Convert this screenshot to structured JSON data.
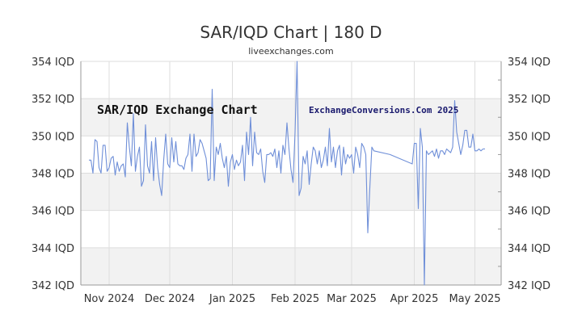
{
  "title": "SAR/IQD Chart | 180 D",
  "subtitle": "liveexchanges.com",
  "watermarks": {
    "left": "SAR/IQD Exchange Chart",
    "right": "ExchangeConversions.Com 2025"
  },
  "colors": {
    "line": "#6f8fd8",
    "band": "#f2f2f2",
    "grid": "#dddddd",
    "axis": "#999999"
  },
  "chart_data": {
    "type": "line",
    "ylim": [
      342,
      354
    ],
    "yticks": [
      342,
      344,
      346,
      348,
      350,
      352,
      354
    ],
    "y_tick_labels_left": [
      "342 IQD",
      "344 IQD",
      "346 IQD",
      "348 IQD",
      "350 IQD",
      "352 IQD",
      "354 IQD"
    ],
    "y_tick_labels_right": [
      "342 IQD",
      "344 IQD",
      "346 IQD",
      "348 IQD",
      "350 IQD",
      "352 IQD",
      "354 IQD"
    ],
    "x_tick_labels": [
      "Nov 2024",
      "Dec 2024",
      "Jan 2025",
      "Feb 2025",
      "Mar 2025",
      "Apr 2025",
      "May 2025"
    ],
    "x_tick_dates": [
      "2024-11-01",
      "2024-12-01",
      "2025-01-01",
      "2025-02-01",
      "2025-03-01",
      "2025-04-01",
      "2025-05-01"
    ],
    "x_range": [
      "2024-10-18",
      "2025-05-14"
    ],
    "grid": true,
    "series": [
      {
        "x": [
          "2024-10-22",
          "2024-10-23",
          "2024-10-24",
          "2024-10-25",
          "2024-10-26",
          "2024-10-27",
          "2024-10-28",
          "2024-10-29",
          "2024-10-30",
          "2024-10-31",
          "2024-11-01",
          "2024-11-02",
          "2024-11-03",
          "2024-11-04",
          "2024-11-05",
          "2024-11-06",
          "2024-11-07",
          "2024-11-08",
          "2024-11-09",
          "2024-11-10",
          "2024-11-11",
          "2024-11-12",
          "2024-11-13",
          "2024-11-14",
          "2024-11-15",
          "2024-11-16",
          "2024-11-17",
          "2024-11-18",
          "2024-11-19",
          "2024-11-20",
          "2024-11-21",
          "2024-11-22",
          "2024-11-23",
          "2024-11-24",
          "2024-11-25",
          "2024-11-26",
          "2024-11-27",
          "2024-11-28",
          "2024-11-29",
          "2024-11-30",
          "2024-12-01",
          "2024-12-02",
          "2024-12-03",
          "2024-12-04",
          "2024-12-05",
          "2024-12-06",
          "2024-12-07",
          "2024-12-08",
          "2024-12-09",
          "2024-12-10",
          "2024-12-11",
          "2024-12-12",
          "2024-12-13",
          "2024-12-14",
          "2024-12-15",
          "2024-12-16",
          "2024-12-17",
          "2024-12-18",
          "2024-12-19",
          "2024-12-20",
          "2024-12-21",
          "2024-12-22",
          "2024-12-23",
          "2024-12-24",
          "2024-12-25",
          "2024-12-26",
          "2024-12-27",
          "2024-12-28",
          "2024-12-29",
          "2024-12-30",
          "2024-12-31",
          "2025-01-01",
          "2025-01-02",
          "2025-01-03",
          "2025-01-04",
          "2025-01-05",
          "2025-01-06",
          "2025-01-07",
          "2025-01-08",
          "2025-01-09",
          "2025-01-10",
          "2025-01-11",
          "2025-01-12",
          "2025-01-13",
          "2025-01-14",
          "2025-01-15",
          "2025-01-16",
          "2025-01-17",
          "2025-01-18",
          "2025-01-19",
          "2025-01-20",
          "2025-01-21",
          "2025-01-22",
          "2025-01-23",
          "2025-01-24",
          "2025-01-25",
          "2025-01-26",
          "2025-01-27",
          "2025-01-28",
          "2025-01-29",
          "2025-01-30",
          "2025-01-31",
          "2025-02-01",
          "2025-02-02",
          "2025-02-03",
          "2025-02-04",
          "2025-02-05",
          "2025-02-06",
          "2025-02-07",
          "2025-02-08",
          "2025-02-09",
          "2025-02-10",
          "2025-02-11",
          "2025-02-12",
          "2025-02-13",
          "2025-02-14",
          "2025-02-15",
          "2025-02-16",
          "2025-02-17",
          "2025-02-18",
          "2025-02-19",
          "2025-02-20",
          "2025-02-21",
          "2025-02-22",
          "2025-02-23",
          "2025-02-24",
          "2025-02-25",
          "2025-02-26",
          "2025-02-27",
          "2025-02-28",
          "2025-03-01",
          "2025-03-02",
          "2025-03-03",
          "2025-03-04",
          "2025-03-05",
          "2025-03-06",
          "2025-03-07",
          "2025-03-08",
          "2025-03-09",
          "2025-03-10",
          "2025-03-11",
          "2025-03-12",
          "2025-03-20",
          "2025-03-31",
          "2025-04-01",
          "2025-04-02",
          "2025-04-03",
          "2025-04-04",
          "2025-04-05",
          "2025-04-06",
          "2025-04-07",
          "2025-04-08",
          "2025-04-09",
          "2025-04-10",
          "2025-04-11",
          "2025-04-12",
          "2025-04-13",
          "2025-04-14",
          "2025-04-15",
          "2025-04-16",
          "2025-04-17",
          "2025-04-18",
          "2025-04-19",
          "2025-04-20",
          "2025-04-21",
          "2025-04-22",
          "2025-04-23",
          "2025-04-24",
          "2025-04-25",
          "2025-04-26",
          "2025-04-27",
          "2025-04-28",
          "2025-04-29",
          "2025-04-30",
          "2025-05-01",
          "2025-05-02",
          "2025-05-03",
          "2025-05-04",
          "2025-05-05",
          "2025-05-06"
        ],
        "values": [
          348.7,
          348.7,
          348.0,
          349.8,
          349.7,
          348.3,
          348.0,
          349.5,
          349.5,
          348.1,
          348.3,
          348.8,
          348.9,
          347.9,
          348.6,
          348.1,
          348.4,
          348.5,
          347.8,
          350.7,
          349.4,
          348.4,
          351.2,
          348.1,
          348.9,
          349.4,
          347.3,
          347.6,
          350.6,
          348.4,
          348.0,
          349.7,
          347.6,
          349.9,
          348.3,
          347.4,
          346.8,
          348.7,
          350.1,
          348.5,
          348.3,
          349.9,
          348.6,
          349.7,
          348.5,
          348.4,
          348.4,
          348.2,
          348.8,
          349.0,
          350.1,
          348.1,
          350.1,
          348.9,
          349.1,
          349.8,
          349.6,
          349.2,
          348.8,
          347.6,
          347.7,
          352.5,
          347.6,
          349.4,
          349.0,
          349.6,
          348.8,
          348.3,
          348.9,
          347.3,
          348.6,
          349.0,
          348.2,
          348.7,
          348.4,
          348.6,
          349.5,
          347.6,
          350.2,
          349.0,
          351.0,
          348.4,
          350.2,
          349.1,
          349.0,
          349.3,
          348.1,
          347.5,
          349.0,
          349.0,
          349.1,
          348.9,
          349.3,
          348.3,
          349.2,
          348.0,
          349.5,
          349.0,
          350.7,
          349.3,
          348.2,
          347.5,
          350.2,
          354.0,
          346.8,
          347.2,
          348.9,
          348.5,
          349.2,
          347.4,
          348.5,
          349.4,
          349.2,
          348.5,
          349.2,
          348.3,
          348.7,
          349.4,
          348.4,
          350.4,
          348.6,
          349.4,
          348.3,
          349.2,
          349.5,
          347.9,
          349.4,
          348.5,
          349.0,
          348.8,
          349.0,
          348.0,
          349.4,
          349.0,
          348.3,
          349.6,
          349.4,
          349.0,
          344.8,
          347.2,
          349.4,
          349.2,
          349.0,
          348.5,
          349.6,
          349.6,
          346.1,
          350.4,
          349.4,
          342.0,
          349.2,
          349.0,
          349.1,
          349.2,
          348.9,
          349.3,
          348.8,
          349.2,
          349.2,
          349.0,
          349.3,
          349.2,
          349.1,
          349.4,
          351.9,
          350.2,
          349.6,
          349.0,
          349.5,
          350.3,
          350.3,
          349.4,
          349.4,
          350.1,
          349.2,
          349.2,
          349.3,
          349.2,
          349.3,
          349.3
        ]
      }
    ]
  }
}
